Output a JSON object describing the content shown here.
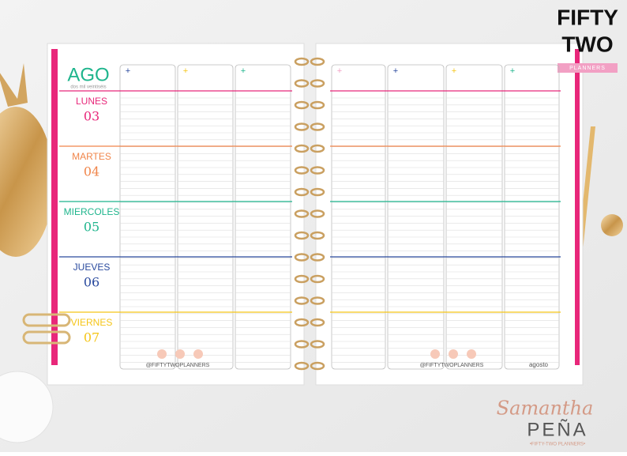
{
  "brand": {
    "line1": "FIFTY",
    "line2": "TWO",
    "tagline": "PLANNERS"
  },
  "left_page": {
    "month": "AGO",
    "year": "dos mil veintiséis",
    "handle": "@FIFTYTWOPLANNERS",
    "days": [
      {
        "name": "LUNES",
        "number": "03",
        "color": "#e8277a"
      },
      {
        "name": "MARTES",
        "number": "04",
        "color": "#f0854a"
      },
      {
        "name": "MIERCOLES",
        "number": "05",
        "color": "#1fb58d"
      },
      {
        "name": "JUEVES",
        "number": "06",
        "color": "#2a4a9e"
      },
      {
        "name": "VIERNES",
        "number": "07",
        "color": "#f5c518"
      }
    ]
  },
  "right_page": {
    "handle": "@FIFTYTWOPLANNERS",
    "month_name": "agosto"
  },
  "signature": {
    "script": "Samantha",
    "name": "PEÑA",
    "tagline": "•FIFTY-TWO PLANNERS•"
  }
}
